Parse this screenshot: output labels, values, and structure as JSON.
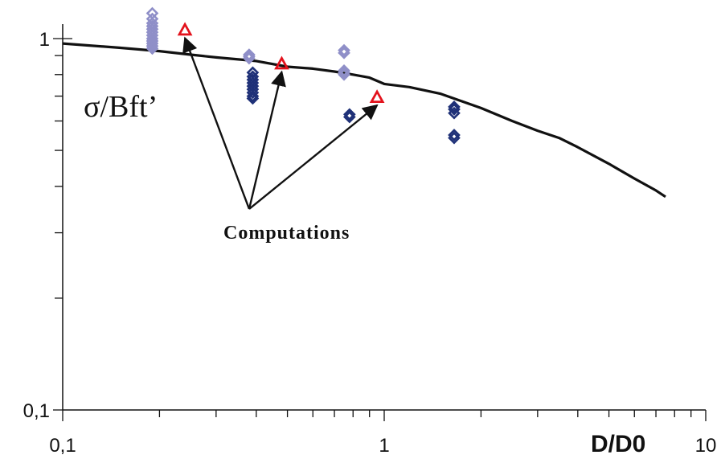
{
  "chart_data": {
    "type": "scatter",
    "xscale": "log",
    "yscale": "log",
    "xlim": [
      0.1,
      10
    ],
    "ylim": [
      0.1,
      1.2
    ],
    "xlabel": "D/D0",
    "ylabel": "σ/Bft’",
    "x_tick_labels": [
      "0,1",
      "1",
      "10"
    ],
    "y_tick_labels": [
      "0,1",
      "1"
    ],
    "annotation": "Computations",
    "colors": {
      "curve": "#111111",
      "light_points": "#8f8fc8",
      "dark_points": "#1f3178",
      "computations": "#e3121c",
      "axes": "#111111"
    },
    "series": [
      {
        "kind": "line",
        "color_key": "curve",
        "x": [
          0.1,
          0.15,
          0.2,
          0.25,
          0.3,
          0.4,
          0.5,
          0.6,
          0.7,
          0.8,
          0.9,
          1.0,
          1.2,
          1.5,
          2.0,
          2.5,
          3.0,
          3.5,
          4.0,
          5.0,
          6.0,
          7.0,
          7.5
        ],
        "y": [
          0.97,
          0.945,
          0.925,
          0.905,
          0.89,
          0.87,
          0.84,
          0.83,
          0.815,
          0.8,
          0.785,
          0.755,
          0.74,
          0.71,
          0.65,
          0.6,
          0.565,
          0.54,
          0.51,
          0.46,
          0.42,
          0.39,
          0.375
        ]
      },
      {
        "kind": "points",
        "marker": "diamond",
        "color_key": "light_points",
        "x": [
          0.19,
          0.19,
          0.19,
          0.19,
          0.19,
          0.19,
          0.19,
          0.19,
          0.19,
          0.19,
          0.19,
          0.19,
          0.38,
          0.38,
          0.38,
          0.75,
          0.75,
          0.75,
          0.75,
          0.75
        ],
        "y": [
          1.17,
          1.13,
          1.1,
          1.08,
          1.06,
          1.04,
          1.02,
          1.0,
          0.985,
          0.97,
          0.955,
          0.94,
          0.905,
          0.895,
          0.885,
          0.93,
          0.915,
          0.82,
          0.81,
          0.8
        ]
      },
      {
        "kind": "points",
        "marker": "diamond",
        "color_key": "dark_points",
        "x": [
          0.39,
          0.39,
          0.39,
          0.39,
          0.39,
          0.39,
          0.39,
          0.39,
          0.39,
          0.78,
          0.78,
          1.65,
          1.65,
          1.65,
          1.65,
          1.65
        ],
        "y": [
          0.81,
          0.79,
          0.775,
          0.76,
          0.745,
          0.73,
          0.715,
          0.7,
          0.69,
          0.625,
          0.615,
          0.655,
          0.645,
          0.63,
          0.55,
          0.54
        ]
      },
      {
        "kind": "points",
        "marker": "triangle",
        "color_key": "computations",
        "x": [
          0.24,
          0.48,
          0.95
        ],
        "y": [
          1.055,
          0.855,
          0.695
        ]
      }
    ]
  }
}
